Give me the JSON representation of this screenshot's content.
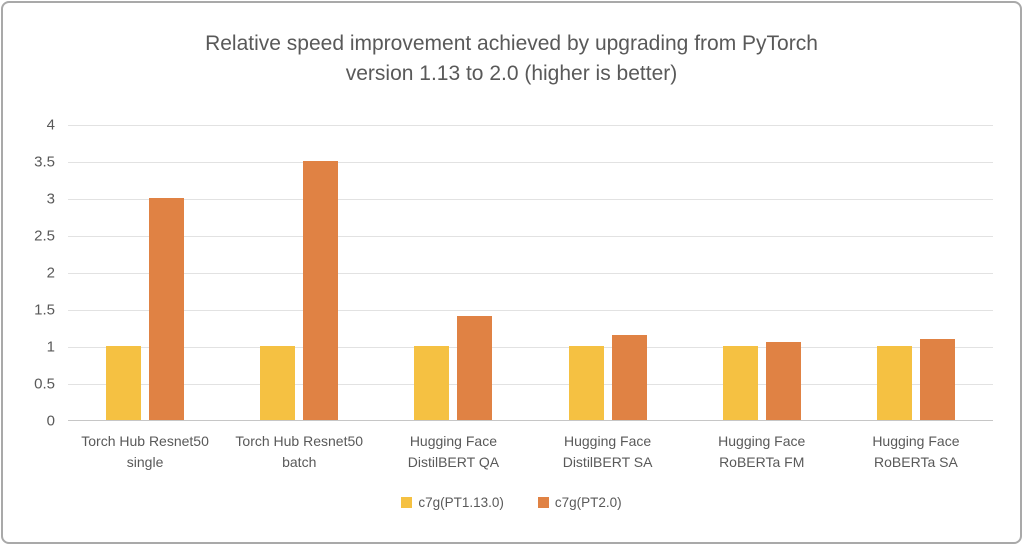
{
  "chart_data": {
    "type": "bar",
    "title": "Relative speed improvement achieved by upgrading from PyTorch\nversion 1.13 to 2.0 (higher is better)",
    "categories": [
      "Torch Hub Resnet50\nsingle",
      "Torch Hub Resnet50\nbatch",
      "Hugging Face\nDistilBERT QA",
      "Hugging Face\nDistilBERT SA",
      "Hugging Face\nRoBERTa FM",
      "Hugging Face\nRoBERTa SA"
    ],
    "series": [
      {
        "name": "c7g(PT1.13.0)",
        "color": "#f5c142",
        "values": [
          1,
          1,
          1,
          1,
          1,
          1
        ]
      },
      {
        "name": "c7g(PT2.0)",
        "color": "#e08244",
        "values": [
          3,
          3.5,
          1.4,
          1.15,
          1.05,
          1.1
        ]
      }
    ],
    "xlabel": "",
    "ylabel": "",
    "ylim": [
      0,
      4
    ],
    "ytick_step": 0.5,
    "grid": true,
    "legend_position": "bottom"
  },
  "style": {
    "text_color": "#595959",
    "gridline_color": "#e2e2e2",
    "axis_line_color": "#c6c6c6",
    "frame_border_color": "#a9a9a9",
    "background": "#ffffff"
  }
}
